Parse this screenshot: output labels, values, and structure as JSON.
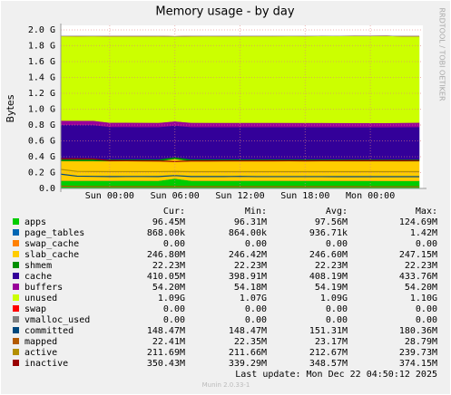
{
  "chart_data": {
    "type": "area",
    "title": "Memory usage - by day",
    "y_label": "Bytes",
    "side_text": "RRDTOOL / TOBI OETIKER",
    "categories": [
      null,
      null,
      null,
      "Sun 00:00",
      null,
      null,
      null,
      "Sun 06:00",
      null,
      null,
      null,
      "Sun 12:00",
      null,
      null,
      null,
      "Sun 18:00",
      null,
      null,
      null,
      "Mon 00:00",
      null,
      null,
      null
    ],
    "ylim": [
      0,
      2000000000
    ],
    "yticks": [
      {
        "value": 0,
        "label": "0.0"
      },
      {
        "value": 200000000,
        "label": "0.2 G"
      },
      {
        "value": 400000000,
        "label": "0.4 G"
      },
      {
        "value": 600000000,
        "label": "0.6 G"
      },
      {
        "value": 800000000,
        "label": "0.8 G"
      },
      {
        "value": 1000000000,
        "label": "1.0 G"
      },
      {
        "value": 1200000000,
        "label": "1.2 G"
      },
      {
        "value": 1400000000,
        "label": "1.4 G"
      },
      {
        "value": 1600000000,
        "label": "1.6 G"
      },
      {
        "value": 1800000000,
        "label": "1.8 G"
      },
      {
        "value": 2000000000,
        "label": "2.0 G"
      }
    ],
    "grid": true,
    "stats_columns": [
      "Cur:",
      "Min:",
      "Avg:",
      "Max:"
    ],
    "series": [
      {
        "name": "apps",
        "color": "#00cc00",
        "stacked": true,
        "stats": [
          "96.45M",
          "96.31M",
          "97.56M",
          "124.69M"
        ],
        "values": [
          97500000,
          97600000,
          97800000,
          97300000,
          98000000,
          97400000,
          97200000,
          124690000,
          97600000,
          97400000,
          97300000,
          97500000,
          97600000,
          97800000,
          97500000,
          97300000,
          97200000,
          97100000,
          97000000,
          96900000,
          96600000,
          96310000,
          96450000
        ]
      },
      {
        "name": "page_tables",
        "color": "#0066b3",
        "stacked": true,
        "stats": [
          "868.00k",
          "864.00k",
          "936.71k",
          "1.42M"
        ],
        "values": [
          1420000,
          960000,
          940000,
          930000,
          920000,
          920000,
          915000,
          980000,
          920000,
          915000,
          910000,
          905000,
          900000,
          900000,
          895000,
          890000,
          885000,
          880000,
          875000,
          870000,
          866000,
          864000,
          868000
        ]
      },
      {
        "name": "swap_cache",
        "color": "#ff8000",
        "stacked": true,
        "stats": [
          "0.00",
          "0.00",
          "0.00",
          "0.00"
        ],
        "values": [
          0,
          0,
          0,
          0,
          0,
          0,
          0,
          0,
          0,
          0,
          0,
          0,
          0,
          0,
          0,
          0,
          0,
          0,
          0,
          0,
          0,
          0,
          0
        ]
      },
      {
        "name": "slab_cache",
        "color": "#ffcc00",
        "stacked": true,
        "stats": [
          "246.80M",
          "246.42M",
          "246.60M",
          "247.15M"
        ],
        "values": [
          247150000,
          246900000,
          246700000,
          246500000,
          246600000,
          246420000,
          246500000,
          246600000,
          246700000,
          246600000,
          246500000,
          246600000,
          246700000,
          246600000,
          246500000,
          246600000,
          246700000,
          246600000,
          246500000,
          246600000,
          246700000,
          246750000,
          246800000
        ]
      },
      {
        "name": "shmem",
        "color": "#008f00",
        "stacked": true,
        "stats": [
          "22.23M",
          "22.23M",
          "22.23M",
          "22.23M"
        ],
        "values": [
          22230000,
          22230000,
          22230000,
          22230000,
          22230000,
          22230000,
          22230000,
          22230000,
          22230000,
          22230000,
          22230000,
          22230000,
          22230000,
          22230000,
          22230000,
          22230000,
          22230000,
          22230000,
          22230000,
          22230000,
          22230000,
          22230000,
          22230000
        ]
      },
      {
        "name": "cache",
        "color": "#330099",
        "stacked": true,
        "stats": [
          "410.05M",
          "398.91M",
          "408.19M",
          "433.76M"
        ],
        "values": [
          433760000,
          433500000,
          433200000,
          409500000,
          408900000,
          408500000,
          408200000,
          398910000,
          407800000,
          407600000,
          407500000,
          407400000,
          407300000,
          407200000,
          407100000,
          406900000,
          406800000,
          406700000,
          406600000,
          406500000,
          406400000,
          408300000,
          410050000
        ]
      },
      {
        "name": "buffers",
        "color": "#990099",
        "stacked": true,
        "stats": [
          "54.20M",
          "54.18M",
          "54.19M",
          "54.20M"
        ],
        "values": [
          54200000,
          54190000,
          54190000,
          54180000,
          54190000,
          54190000,
          54190000,
          54190000,
          54190000,
          54190000,
          54190000,
          54190000,
          54190000,
          54190000,
          54190000,
          54190000,
          54190000,
          54190000,
          54190000,
          54190000,
          54190000,
          54200000,
          54200000
        ]
      },
      {
        "name": "unused",
        "color": "#ccff00",
        "stacked": true,
        "stats": [
          "1.09G",
          "1.07G",
          "1.09G",
          "1.10G"
        ],
        "values": [
          1066000000,
          1066000000,
          1067000000,
          1090000000,
          1090000000,
          1091000000,
          1092000000,
          1070000000,
          1092000000,
          1093000000,
          1093000000,
          1093000000,
          1093000000,
          1093000000,
          1094000000,
          1094000000,
          1095000000,
          1095000000,
          1096000000,
          1096000000,
          1097000000,
          1092000000,
          1090000000
        ]
      },
      {
        "name": "swap",
        "color": "#ff0000",
        "stacked": true,
        "stats": [
          "0.00",
          "0.00",
          "0.00",
          "0.00"
        ],
        "values": [
          0,
          0,
          0,
          0,
          0,
          0,
          0,
          0,
          0,
          0,
          0,
          0,
          0,
          0,
          0,
          0,
          0,
          0,
          0,
          0,
          0,
          0,
          0
        ]
      },
      {
        "name": "vmalloc_used",
        "color": "#808080",
        "stacked": true,
        "stats": [
          "0.00",
          "0.00",
          "0.00",
          "0.00"
        ],
        "values": [
          0,
          0,
          0,
          0,
          0,
          0,
          0,
          0,
          0,
          0,
          0,
          0,
          0,
          0,
          0,
          0,
          0,
          0,
          0,
          0,
          0,
          0,
          0
        ]
      },
      {
        "name": "committed",
        "color": "#00487d",
        "stacked": false,
        "stats": [
          "148.47M",
          "148.47M",
          "151.31M",
          "180.36M"
        ],
        "values": [
          180360000,
          155000000,
          152000000,
          150000000,
          150500000,
          151000000,
          150000000,
          162000000,
          150000000,
          149800000,
          149600000,
          152000000,
          149500000,
          149400000,
          149300000,
          149200000,
          149100000,
          149000000,
          148900000,
          148800000,
          148700000,
          148600000,
          148470000
        ]
      },
      {
        "name": "mapped",
        "color": "#b35a00",
        "stacked": false,
        "stats": [
          "22.41M",
          "22.35M",
          "23.17M",
          "28.79M"
        ],
        "values": [
          28790000,
          24000000,
          23500000,
          23000000,
          23000000,
          22900000,
          22900000,
          23800000,
          22800000,
          22800000,
          22700000,
          22700000,
          22700000,
          22600000,
          22600000,
          22600000,
          22500000,
          22500000,
          22500000,
          22400000,
          22350000,
          22400000,
          22410000
        ]
      },
      {
        "name": "active",
        "color": "#b38f00",
        "stacked": false,
        "stats": [
          "211.69M",
          "211.66M",
          "212.67M",
          "239.73M"
        ],
        "values": [
          239730000,
          215000000,
          213000000,
          212000000,
          212000000,
          211900000,
          211900000,
          214000000,
          211800000,
          211800000,
          211800000,
          211800000,
          211700000,
          211700000,
          211700000,
          211700000,
          211700000,
          211700000,
          211700000,
          211700000,
          211660000,
          211680000,
          211690000
        ]
      },
      {
        "name": "inactive",
        "color": "#990000",
        "stacked": false,
        "stats": [
          "350.43M",
          "339.29M",
          "348.57M",
          "374.15M"
        ],
        "values": [
          374150000,
          373000000,
          372000000,
          350000000,
          349000000,
          348000000,
          347000000,
          339290000,
          347000000,
          347500000,
          348000000,
          348000000,
          348500000,
          348500000,
          349000000,
          349000000,
          349500000,
          349500000,
          350000000,
          350000000,
          350200000,
          350300000,
          350430000
        ]
      }
    ],
    "last_update": "Last update:  Mon Dec 22 04:50:12 2025",
    "footer": "Munin 2.0.33-1"
  }
}
